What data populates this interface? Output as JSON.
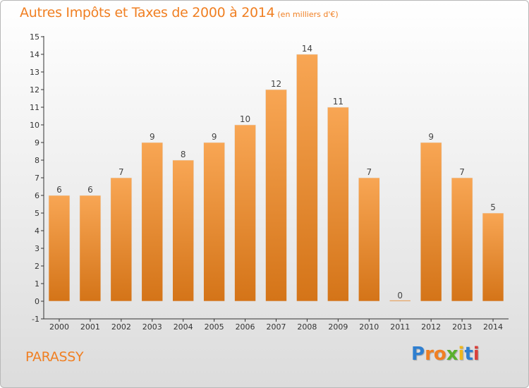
{
  "header": {
    "title": "Autres Impôts et Taxes de 2000 à 2014",
    "unit": "(en milliers d'€)"
  },
  "footer": {
    "commune": "PARASSY",
    "logo_letters": [
      "P",
      "r",
      "o",
      "x",
      "i",
      "t",
      "i"
    ],
    "logo_colors": [
      "#2f7fd0",
      "#f07f22",
      "#f07f22",
      "#5ab02c",
      "#f0b71b",
      "#2f7fd0",
      "#d9403a"
    ]
  },
  "colors": {
    "bar_top": "#f8a654",
    "bar_bottom": "#d47418",
    "accent": "#f07f22",
    "axis": "#333333"
  },
  "chart_data": {
    "type": "bar",
    "title": "Autres Impôts et Taxes de 2000 à 2014",
    "subtitle": "(en milliers d'€)",
    "categories": [
      "2000",
      "2001",
      "2002",
      "2003",
      "2004",
      "2005",
      "2006",
      "2007",
      "2008",
      "2009",
      "2010",
      "2011",
      "2012",
      "2013",
      "2014"
    ],
    "values": [
      6,
      6,
      7,
      9,
      8,
      9,
      10,
      12,
      14,
      11,
      7,
      0,
      9,
      7,
      5
    ],
    "data_labels": [
      "6",
      "6",
      "7",
      "9",
      "8",
      "9",
      "10",
      "12",
      "14",
      "11",
      "7",
      "0",
      "9",
      "7",
      "5"
    ],
    "yticks": [
      "-1",
      "0",
      "1",
      "2",
      "3",
      "4",
      "5",
      "6",
      "7",
      "8",
      "9",
      "10",
      "11",
      "12",
      "13",
      "14",
      "15"
    ],
    "ylim": [
      -1,
      15
    ],
    "xlabel": "",
    "ylabel": "",
    "grid": false,
    "legend": "none"
  }
}
